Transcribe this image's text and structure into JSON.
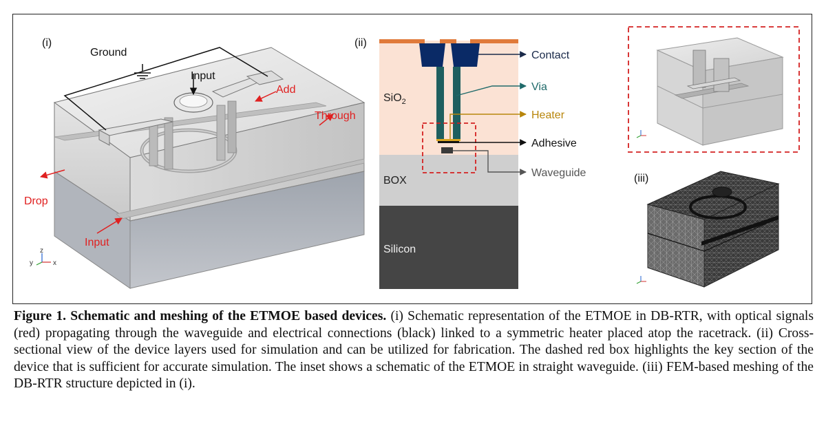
{
  "panel_i": {
    "label": "(i)",
    "ground": "Ground",
    "input_top": "Input",
    "add": "Add",
    "through": "Through",
    "drop": "Drop",
    "input_bottom": "Input",
    "axis_z": "z",
    "axis_y": "y",
    "axis_x": "x"
  },
  "panel_ii": {
    "label": "(ii)",
    "sio2_main": "SiO",
    "sio2_sub": "2",
    "box": "BOX",
    "silicon": "Silicon",
    "contact": "Contact",
    "via": "Via",
    "heater": "Heater",
    "adhesive": "Adhesive",
    "waveguide": "Waveguide"
  },
  "panel_iii": {
    "label": "(iii)"
  },
  "colors": {
    "contact": "#e07a3a",
    "via": "#1f5f5f",
    "via_label": "#1f6a6a",
    "heater_label": "#b8860b",
    "heater": "#d9a520",
    "sio2_bg": "#fbe2d4",
    "box_bg": "#cfcfcf",
    "silicon_bg": "#454545",
    "pad": "#0a2a66",
    "signal_red": "#e02020",
    "dashed_box": "#d42020"
  },
  "caption": {
    "bold": "Figure 1. Schematic and meshing of the ETMOE based devices.",
    "text": " (i) Schematic representation of the ETMOE in DB-RTR, with optical signals (red) propagating through the waveguide and electrical connections (black) linked to a symmetric heater placed atop the racetrack. (ii) Cross-sectional view of the device layers used for simulation and can be utilized for fabrication. The dashed red box highlights the key section of the device that is sufficient for accurate simulation. The inset shows a schematic of the ETMOE in straight waveguide. (iii) FEM-based meshing of the DB-RTR structure depicted in (i)."
  }
}
